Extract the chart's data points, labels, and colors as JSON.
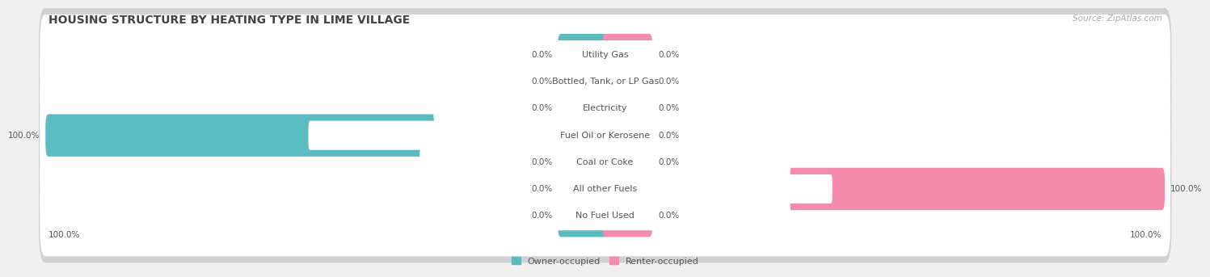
{
  "title": "HOUSING STRUCTURE BY HEATING TYPE IN LIME VILLAGE",
  "source": "Source: ZipAtlas.com",
  "categories": [
    "Utility Gas",
    "Bottled, Tank, or LP Gas",
    "Electricity",
    "Fuel Oil or Kerosene",
    "Coal or Coke",
    "All other Fuels",
    "No Fuel Used"
  ],
  "owner_values": [
    0.0,
    0.0,
    0.0,
    100.0,
    0.0,
    0.0,
    0.0
  ],
  "renter_values": [
    0.0,
    0.0,
    0.0,
    0.0,
    0.0,
    100.0,
    0.0
  ],
  "owner_color": "#5bbcbf",
  "renter_color": "#f48bac",
  "owner_label": "Owner-occupied",
  "renter_label": "Renter-occupied",
  "bg_color": "#f0f0f0",
  "row_bg_color": "#e8e8ec",
  "row_inner_color": "#f8f8fa",
  "title_color": "#444444",
  "label_color": "#555555",
  "source_color": "#aaaaaa",
  "axis_max": 100.0,
  "stub_size": 8.0,
  "title_fontsize": 10,
  "label_fontsize": 7.5,
  "category_fontsize": 8,
  "legend_fontsize": 8,
  "source_fontsize": 7.5
}
